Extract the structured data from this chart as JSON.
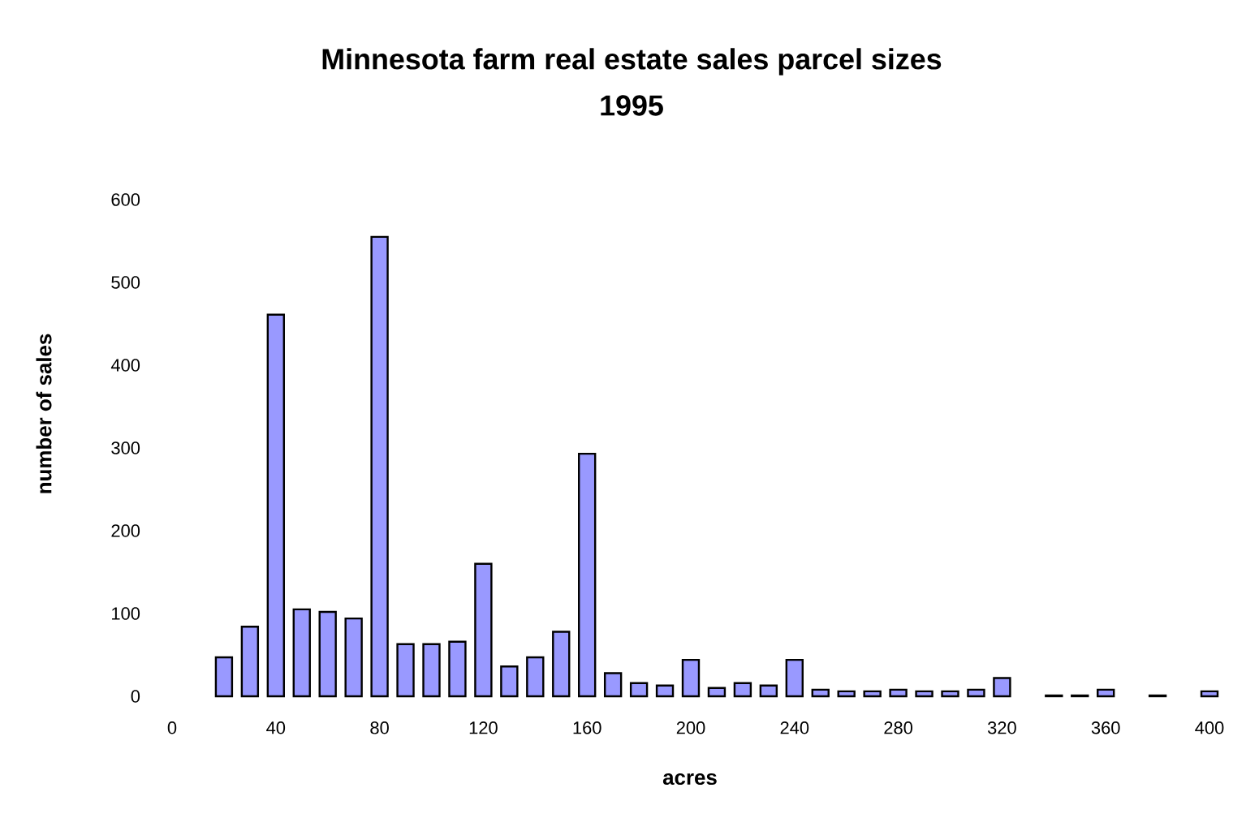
{
  "chart_data": {
    "type": "bar",
    "title": "Minnesota farm real estate sales parcel sizes",
    "subtitle": "1995",
    "xlabel": "acres",
    "ylabel": "number of sales",
    "x": [
      20,
      30,
      40,
      50,
      60,
      70,
      80,
      90,
      100,
      110,
      120,
      130,
      140,
      150,
      160,
      170,
      180,
      190,
      200,
      210,
      220,
      230,
      240,
      250,
      260,
      270,
      280,
      290,
      300,
      310,
      320,
      330,
      340,
      350,
      360,
      370,
      380,
      390,
      400
    ],
    "values": [
      47,
      84,
      461,
      105,
      102,
      94,
      555,
      63,
      63,
      66,
      160,
      36,
      47,
      78,
      293,
      28,
      16,
      13,
      44,
      10,
      16,
      13,
      44,
      8,
      6,
      6,
      8,
      6,
      6,
      8,
      22,
      null,
      1,
      1,
      8,
      null,
      1,
      null,
      6
    ],
    "color": "#9999ff",
    "xlim": [
      0,
      400
    ],
    "xticks": [
      0,
      40,
      80,
      120,
      160,
      200,
      240,
      280,
      320,
      360,
      400
    ],
    "ylim": [
      0,
      600
    ],
    "yticks": [
      0,
      100,
      200,
      300,
      400,
      500,
      600
    ],
    "grid": false
  }
}
